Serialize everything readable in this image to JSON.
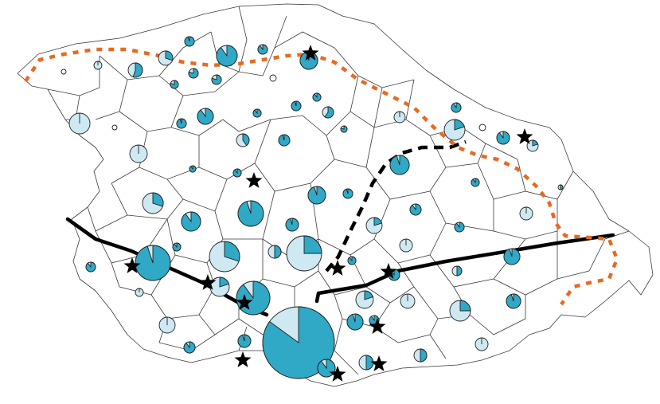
{
  "colors": {
    "accent": "#2fa9c6",
    "light": "#cfe9f3",
    "outline": "#1f1f1f",
    "cell_border": "#3a3a3a",
    "route_orange": "#e8691f",
    "route_black": "#000000",
    "star": "#000000",
    "background": "#ffffff"
  },
  "legend": [],
  "icons": {
    "site_marker": "star-icon",
    "pie_marker": "pie-chart-icon"
  }
}
